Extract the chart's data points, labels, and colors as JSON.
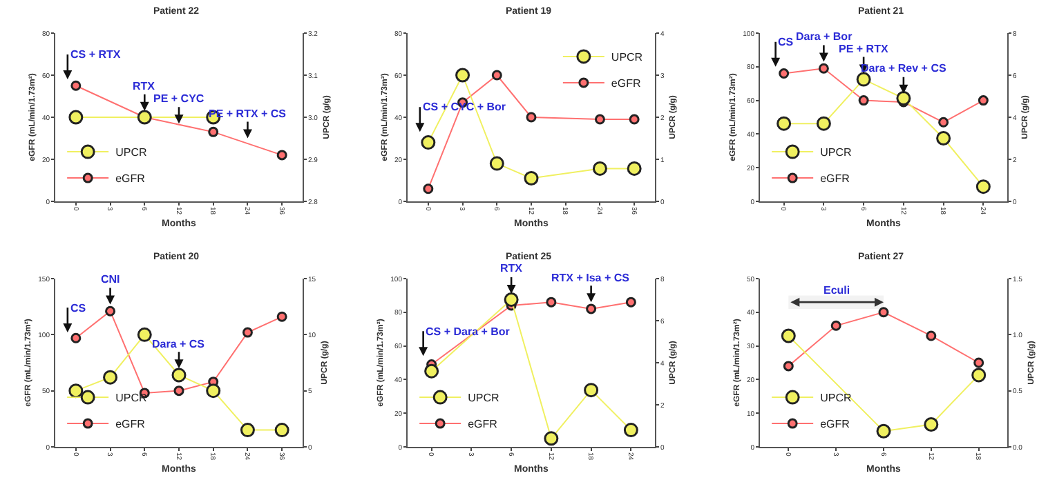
{
  "chart_data": [
    {
      "type": "line",
      "title": "Patient 22",
      "xlabel": "Months",
      "ylabel": "eGFR (mL/min/1.73m²)",
      "y2label": "UPCR (g/g)",
      "categories": [
        "0",
        "3",
        "6",
        "12",
        "18",
        "24",
        "36"
      ],
      "series": [
        {
          "name": "UPCR",
          "color": "#f0f060",
          "axis": "y2",
          "values": [
            3.0,
            null,
            3.0,
            null,
            3.0,
            null,
            null
          ]
        },
        {
          "name": "eGFR",
          "color": "#ff7070",
          "values": [
            55,
            null,
            40,
            null,
            33,
            null,
            22
          ]
        }
      ],
      "ylim": [
        0,
        80
      ],
      "yticks": [
        0,
        20,
        40,
        60,
        80
      ],
      "y2lim": [
        2.8,
        3.2
      ],
      "y2ticks": [
        2.8,
        2.9,
        {
          "value": 3,
          "label": "3.0"
        },
        3.1,
        3.2
      ],
      "annotations": [
        {
          "text": "CS + RTX",
          "x": "0",
          "y": 58
        },
        {
          "text": "RTX",
          "x": "6",
          "y": 43
        },
        {
          "text": "PE + CYC",
          "x": "12",
          "y": 37
        },
        {
          "text": "PE + RTX + CS",
          "x": "24",
          "y": 30
        }
      ],
      "legend": "bottom left",
      "marker": "circle",
      "grid": false
    },
    {
      "type": "line",
      "title": "Patient 19",
      "xlabel": "Months",
      "ylabel": "eGFR (mL/min/1.73m²)",
      "y2label": "UPCR (g/g)",
      "categories": [
        "0",
        "3",
        "6",
        "12",
        "18",
        "24",
        "36"
      ],
      "series": [
        {
          "name": "UPCR",
          "color": "#f0f060",
          "axis": "y2",
          "values": [
            1.4,
            3.0,
            0.9,
            0.55,
            null,
            0.78,
            0.78
          ]
        },
        {
          "name": "eGFR",
          "color": "#ff7070",
          "values": [
            6,
            47,
            60,
            40,
            null,
            39,
            39
          ]
        }
      ],
      "ylim": [
        0,
        80
      ],
      "yticks": [
        0,
        20,
        40,
        60,
        80
      ],
      "y2lim": [
        0,
        4
      ],
      "y2ticks": [
        0,
        1,
        2,
        3,
        4
      ],
      "annotations": [
        {
          "text": "CS + CYC + Bor",
          "x": "0",
          "y": 33
        }
      ],
      "legend": "top right",
      "marker": "circle",
      "grid": false
    },
    {
      "type": "line",
      "title": "Patient 21",
      "xlabel": "Months",
      "ylabel": "eGFR (mL/min/1.73m²)",
      "y2label": "UPCR (g/g)",
      "categories": [
        "0",
        "3",
        "6",
        "12",
        "18",
        "24"
      ],
      "series": [
        {
          "name": "UPCR",
          "color": "#f0f060",
          "axis": "y2",
          "values": [
            3.7,
            3.7,
            5.8,
            4.9,
            3.0,
            0.7
          ]
        },
        {
          "name": "eGFR",
          "color": "#ff7070",
          "values": [
            76,
            79,
            60,
            59,
            47,
            60
          ]
        }
      ],
      "ylim": [
        0,
        100
      ],
      "yticks": [
        0,
        20,
        40,
        60,
        80,
        100
      ],
      "y2lim": [
        0,
        8
      ],
      "y2ticks": [
        0,
        2,
        4,
        6,
        8
      ],
      "annotations": [
        {
          "text": "CS",
          "x": "0",
          "y": 80
        },
        {
          "text": "Dara + Bor",
          "x": "3",
          "y": 83
        },
        {
          "text": "PE + RTX",
          "x": "6",
          "y": 76
        },
        {
          "text": "Dara + Rev + CS",
          "x": "12",
          "y": 64
        }
      ],
      "legend": "bottom left",
      "marker": "circle",
      "grid": false
    },
    {
      "type": "line",
      "title": "Patient 20",
      "xlabel": "Months",
      "ylabel": "eGFR (mL/min/1.73m²)",
      "y2label": "UPCR (g/g)",
      "categories": [
        "0",
        "3",
        "6",
        "12",
        "18",
        "24",
        "36"
      ],
      "series": [
        {
          "name": "UPCR",
          "color": "#f0f060",
          "axis": "y2",
          "values": [
            5.0,
            6.2,
            10,
            6.4,
            5.0,
            1.5,
            1.5
          ]
        },
        {
          "name": "eGFR",
          "color": "#ff7070",
          "values": [
            97,
            121,
            48,
            50,
            58,
            102,
            116
          ]
        }
      ],
      "ylim": [
        0,
        150
      ],
      "yticks": [
        0,
        50,
        100,
        150
      ],
      "y2lim": [
        0,
        15
      ],
      "y2ticks": [
        0,
        5,
        10,
        15
      ],
      "annotations": [
        {
          "text": "CS",
          "x": "0",
          "y": 102
        },
        {
          "text": "CNI",
          "x": "3",
          "y": 127
        },
        {
          "text": "Dara + CS",
          "x": "12",
          "y": 70
        }
      ],
      "legend": "bottom left",
      "marker": "circle",
      "grid": false
    },
    {
      "type": "line",
      "title": "Patient 25",
      "xlabel": "Months",
      "ylabel": "eGFR (mL/min/1.73m²)",
      "y2label": "UPCR (g/g)",
      "categories": [
        "0",
        "3",
        "6",
        "12",
        "18",
        "24"
      ],
      "series": [
        {
          "name": "UPCR",
          "color": "#f0f060",
          "axis": "y2",
          "values": [
            3.6,
            null,
            7.0,
            0.4,
            2.7,
            0.8
          ]
        },
        {
          "name": "eGFR",
          "color": "#ff7070",
          "values": [
            49,
            null,
            84,
            86,
            82,
            86
          ]
        }
      ],
      "ylim": [
        0,
        100
      ],
      "yticks": [
        0,
        20,
        40,
        60,
        80,
        100
      ],
      "y2lim": [
        0,
        8
      ],
      "y2ticks": [
        0,
        2,
        4,
        6,
        8
      ],
      "annotations": [
        {
          "text": "CS + Dara + Bor",
          "x": "0",
          "y": 54
        },
        {
          "text": "RTX",
          "x": "6",
          "y": 91
        },
        {
          "text": "RTX + Isa + CS",
          "x": "18",
          "y": 86
        }
      ],
      "legend": "bottom left",
      "marker": "circle",
      "grid": false
    },
    {
      "type": "line",
      "title": "Patient 27",
      "xlabel": "Months",
      "ylabel": "eGFR (mL/min/1.73m²)",
      "y2label": "UPCR (g/g)",
      "categories": [
        "0",
        "3",
        "6",
        "12",
        "18"
      ],
      "series": [
        {
          "name": "UPCR",
          "color": "#f0f060",
          "axis": "y2",
          "values": [
            0.99,
            null,
            0.14,
            0.2,
            0.64
          ]
        },
        {
          "name": "eGFR",
          "color": "#ff7070",
          "values": [
            24,
            36,
            40,
            33,
            25
          ]
        }
      ],
      "ylim": [
        0,
        50
      ],
      "yticks": [
        0,
        10,
        20,
        30,
        40,
        50
      ],
      "y2lim": [
        0,
        1.5
      ],
      "y2ticks": [
        {
          "value": 0,
          "label": "0.0"
        },
        0.5,
        {
          "value": 1,
          "label": "1.0"
        },
        1.5
      ],
      "bands": [
        {
          "axis": "x",
          "from": "0",
          "to": "6",
          "label": "Eculi"
        }
      ],
      "legend": "bottom left",
      "marker": "circle",
      "grid": false
    }
  ]
}
